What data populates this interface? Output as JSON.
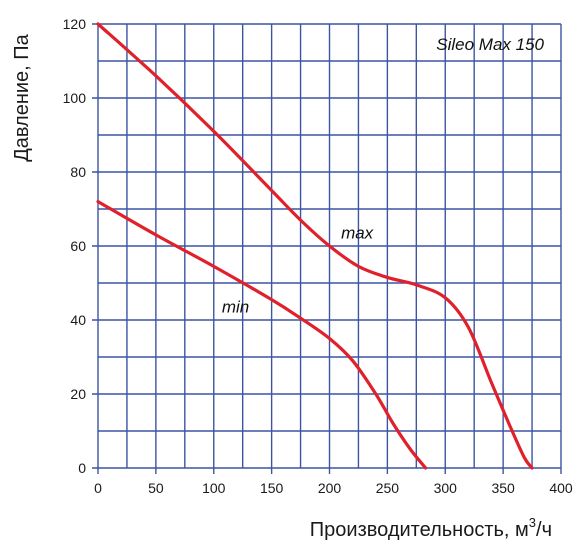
{
  "chart_data": {
    "type": "line",
    "title": "",
    "model_label": "Sileo Max 150",
    "xlabel": "Производительность, м",
    "xlabel_sup": "3",
    "xlabel_suffix": "/ч",
    "ylabel": "Давление, Па",
    "xlim": [
      0,
      400
    ],
    "ylim": [
      0,
      120
    ],
    "x_ticks": [
      0,
      50,
      100,
      150,
      200,
      250,
      300,
      350,
      400
    ],
    "y_ticks": [
      0,
      20,
      40,
      60,
      80,
      100,
      120
    ],
    "grid": true,
    "series": [
      {
        "name": "max",
        "points": [
          [
            0,
            120
          ],
          [
            50,
            106
          ],
          [
            100,
            91
          ],
          [
            150,
            75
          ],
          [
            175,
            67
          ],
          [
            200,
            60
          ],
          [
            225,
            54.5
          ],
          [
            250,
            51.5
          ],
          [
            275,
            49.5
          ],
          [
            300,
            46
          ],
          [
            320,
            38
          ],
          [
            340,
            23
          ],
          [
            355,
            12
          ],
          [
            368,
            3
          ],
          [
            375,
            0
          ]
        ]
      },
      {
        "name": "min",
        "points": [
          [
            0,
            72
          ],
          [
            50,
            63
          ],
          [
            100,
            54.5
          ],
          [
            150,
            45.5
          ],
          [
            175,
            40.5
          ],
          [
            200,
            35
          ],
          [
            220,
            29
          ],
          [
            240,
            20
          ],
          [
            255,
            12
          ],
          [
            270,
            5
          ],
          [
            283,
            0
          ]
        ]
      }
    ],
    "annotations": [
      {
        "text": "max",
        "x": 210,
        "y": 62
      },
      {
        "text": "min",
        "x": 107,
        "y": 42
      }
    ],
    "colors": {
      "curve": "#e0202a",
      "grid": "#3d55a3"
    }
  }
}
